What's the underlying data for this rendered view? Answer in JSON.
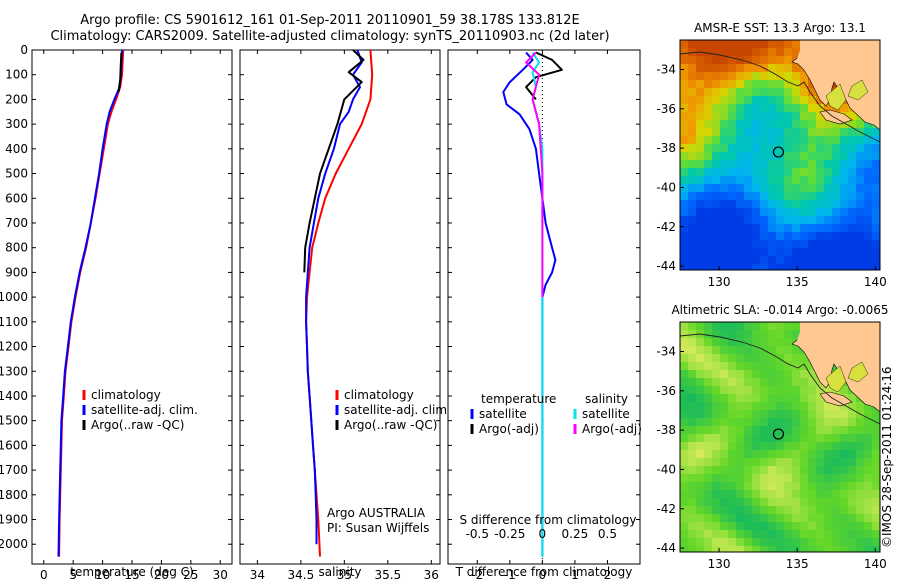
{
  "header": {
    "line1": "Argo profile: CS 5901612_161 01-Sep-2011 20110901_59 38.178S 133.812E",
    "line2": "Climatology: CARS2009. Satellite-adjusted climatology: synTS_20110903.nc (2d later)"
  },
  "colors": {
    "climatology": "#ff0000",
    "satellite": "#0000ff",
    "argo": "#000000",
    "salinity_satellite": "#00e5ee",
    "salinity_argo": "#ff00ff"
  },
  "chart_data": [
    {
      "type": "line",
      "xlabel": "temperature (deg C)",
      "ylabel": "",
      "xlim": [
        -2,
        32
      ],
      "ylim": [
        2080,
        0
      ],
      "xticks": [
        0,
        5,
        10,
        15,
        20,
        25,
        30
      ],
      "yticks": [
        0,
        100,
        200,
        300,
        400,
        500,
        600,
        700,
        800,
        900,
        1000,
        1100,
        1200,
        1300,
        1400,
        1500,
        1600,
        1700,
        1800,
        1900,
        2000
      ],
      "legend": {
        "placement": "bottom-left",
        "entries": [
          "climatology",
          "satellite-adj. clim.",
          "Argo(..raw -QC)"
        ]
      },
      "series": [
        {
          "name": "climatology",
          "color": "#ff0000",
          "points": [
            [
              13.5,
              0
            ],
            [
              13.4,
              50
            ],
            [
              13.3,
              100
            ],
            [
              13.0,
              150
            ],
            [
              12.3,
              200
            ],
            [
              11.5,
              250
            ],
            [
              10.9,
              300
            ],
            [
              10.2,
              400
            ],
            [
              9.5,
              500
            ],
            [
              8.8,
              600
            ],
            [
              8.0,
              700
            ],
            [
              7.2,
              800
            ],
            [
              6.2,
              900
            ],
            [
              5.4,
              1000
            ],
            [
              4.7,
              1100
            ],
            [
              4.2,
              1200
            ],
            [
              3.7,
              1300
            ],
            [
              3.4,
              1400
            ],
            [
              3.1,
              1500
            ],
            [
              2.9,
              1700
            ],
            [
              2.7,
              1900
            ],
            [
              2.6,
              2050
            ]
          ]
        },
        {
          "name": "satellite-adj. clim.",
          "color": "#0000ff",
          "points": [
            [
              13.3,
              0
            ],
            [
              13.2,
              50
            ],
            [
              13.1,
              100
            ],
            [
              12.9,
              150
            ],
            [
              12.0,
              200
            ],
            [
              11.2,
              250
            ],
            [
              10.7,
              300
            ],
            [
              10.0,
              400
            ],
            [
              9.4,
              500
            ],
            [
              8.7,
              600
            ],
            [
              8.0,
              700
            ],
            [
              7.1,
              800
            ],
            [
              6.1,
              900
            ],
            [
              5.3,
              1000
            ],
            [
              4.6,
              1100
            ],
            [
              4.1,
              1200
            ],
            [
              3.6,
              1300
            ],
            [
              3.3,
              1400
            ],
            [
              3.0,
              1500
            ],
            [
              2.8,
              1700
            ],
            [
              2.6,
              1900
            ],
            [
              2.5,
              2050
            ]
          ]
        },
        {
          "name": "Argo(..raw -QC)",
          "color": "#000000",
          "points": [
            [
              13.2,
              10
            ],
            [
              13.1,
              60
            ],
            [
              13.0,
              120
            ],
            [
              12.7,
              170
            ]
          ]
        }
      ]
    },
    {
      "type": "line",
      "xlabel": "salinity",
      "ylabel": "",
      "xlim": [
        33.8,
        36.1
      ],
      "ylim": [
        2080,
        0
      ],
      "xticks": [
        34,
        34.5,
        35,
        35.5,
        36
      ],
      "legend": {
        "placement": "bottom-right",
        "entries": [
          "climatology",
          "satellite-adj. clim.",
          "Argo(..raw -QC)"
        ]
      },
      "annotations": [
        "Argo AUSTRALIA",
        "PI: Susan Wijffels"
      ],
      "series": [
        {
          "name": "climatology",
          "color": "#ff0000",
          "points": [
            [
              35.3,
              0
            ],
            [
              35.32,
              100
            ],
            [
              35.3,
              200
            ],
            [
              35.2,
              300
            ],
            [
              35.05,
              400
            ],
            [
              34.9,
              500
            ],
            [
              34.78,
              600
            ],
            [
              34.7,
              700
            ],
            [
              34.63,
              800
            ],
            [
              34.6,
              900
            ],
            [
              34.57,
              1000
            ],
            [
              34.56,
              1100
            ],
            [
              34.57,
              1200
            ],
            [
              34.58,
              1300
            ],
            [
              34.6,
              1400
            ],
            [
              34.62,
              1500
            ],
            [
              34.64,
              1600
            ],
            [
              34.66,
              1700
            ],
            [
              34.68,
              1800
            ],
            [
              34.7,
              1900
            ],
            [
              34.72,
              2050
            ]
          ]
        },
        {
          "name": "satellite-adj. clim.",
          "color": "#0000ff",
          "points": [
            [
              35.15,
              0
            ],
            [
              35.2,
              50
            ],
            [
              35.1,
              100
            ],
            [
              35.18,
              150
            ],
            [
              35.1,
              200
            ],
            [
              35.05,
              250
            ],
            [
              34.95,
              300
            ],
            [
              34.88,
              400
            ],
            [
              34.78,
              500
            ],
            [
              34.7,
              600
            ],
            [
              34.65,
              700
            ],
            [
              34.6,
              800
            ],
            [
              34.58,
              900
            ],
            [
              34.56,
              1000
            ],
            [
              34.56,
              1100
            ],
            [
              34.57,
              1200
            ],
            [
              34.58,
              1300
            ],
            [
              34.6,
              1400
            ],
            [
              34.62,
              1500
            ],
            [
              34.64,
              1600
            ],
            [
              34.66,
              1700
            ],
            [
              34.67,
              1800
            ],
            [
              34.68,
              1900
            ],
            [
              34.68,
              2000
            ]
          ]
        },
        {
          "name": "Argo(..raw -QC)",
          "color": "#000000",
          "points": [
            [
              35.1,
              0
            ],
            [
              35.22,
              40
            ],
            [
              35.05,
              90
            ],
            [
              35.2,
              130
            ],
            [
              35.0,
              200
            ],
            [
              34.92,
              300
            ],
            [
              34.82,
              400
            ],
            [
              34.72,
              500
            ],
            [
              34.66,
              600
            ],
            [
              34.6,
              700
            ],
            [
              34.55,
              800
            ],
            [
              34.54,
              900
            ]
          ]
        }
      ]
    },
    {
      "type": "line",
      "xlabel": "T difference from climatology",
      "ylabel": "",
      "xlim": [
        -2.9,
        3.0
      ],
      "ylim": [
        2080,
        0
      ],
      "xticks": [
        -2,
        -1,
        0,
        1,
        2
      ],
      "secondary_axis": {
        "label": "S difference from climatology",
        "ticks": [
          -0.5,
          -0.25,
          0,
          0.25,
          0.5
        ],
        "tick_labels": [
          "-0.5",
          "-0.25",
          "0",
          "0.25",
          "0.5"
        ],
        "scale": 4
      },
      "legend": {
        "placement": "middle",
        "entries": [
          "temperature",
          "satellite",
          "Argo(-adj)",
          "salinity",
          "satellite",
          "Argo(-adj)"
        ]
      },
      "series": [
        {
          "name": "satellite",
          "color": "#0000ff",
          "points": [
            [
              -0.5,
              10
            ],
            [
              -0.3,
              40
            ],
            [
              -0.6,
              80
            ],
            [
              -1.0,
              130
            ],
            [
              -1.2,
              170
            ],
            [
              -1.1,
              220
            ],
            [
              -0.7,
              260
            ],
            [
              -0.4,
              320
            ],
            [
              -0.2,
              400
            ],
            [
              -0.1,
              500
            ],
            [
              0,
              600
            ],
            [
              0.1,
              700
            ],
            [
              0.3,
              800
            ],
            [
              0.4,
              850
            ],
            [
              0.3,
              900
            ],
            [
              0.1,
              950
            ],
            [
              0,
              1000
            ],
            [
              0,
              1200
            ],
            [
              0,
              1400
            ],
            [
              0,
              2050
            ]
          ]
        },
        {
          "name": "Argo(-adj)",
          "color": "#000000",
          "points": [
            [
              -0.2,
              10
            ],
            [
              0.3,
              40
            ],
            [
              0.6,
              80
            ],
            [
              -0.2,
              110
            ],
            [
              -0.5,
              150
            ],
            [
              -0.2,
              200
            ]
          ]
        },
        {
          "name": "satellite",
          "color": "#00e5ee",
          "points": [
            [
              -0.3,
              10
            ],
            [
              -0.1,
              50
            ],
            [
              -0.3,
              90
            ],
            [
              -0.2,
              150
            ],
            [
              -0.3,
              200
            ],
            [
              -0.1,
              300
            ],
            [
              0,
              400
            ],
            [
              0,
              600
            ],
            [
              0,
              800
            ],
            [
              0,
              1000
            ],
            [
              0,
              1500
            ],
            [
              0,
              2050
            ]
          ]
        },
        {
          "name": "Argo(-adj)",
          "color": "#ff00ff",
          "points": [
            [
              -0.2,
              10
            ],
            [
              -0.5,
              50
            ],
            [
              -0.1,
              100
            ],
            [
              -0.3,
              200
            ],
            [
              -0.1,
              300
            ],
            [
              0,
              500
            ],
            [
              0,
              1000
            ]
          ]
        }
      ]
    },
    {
      "type": "heatmap",
      "title": "AMSR-E SST: 13.3 Argo: 13.1",
      "xticks": [
        130,
        135,
        140
      ],
      "yticks": [
        -34,
        -36,
        -38,
        -40,
        -42,
        -44
      ],
      "xlim": [
        127.5,
        140.3
      ],
      "ylim": [
        -44.2,
        -32.5
      ],
      "marker": [
        133.8,
        -38.2
      ]
    },
    {
      "type": "heatmap",
      "title": "Altimetric SLA: -0.014 Argo: -0.0065",
      "xticks": [
        130,
        135,
        140
      ],
      "yticks": [
        -34,
        -36,
        -38,
        -40,
        -42,
        -44
      ],
      "xlim": [
        127.5,
        140.3
      ],
      "ylim": [
        -44.2,
        -32.5
      ],
      "marker": [
        133.8,
        -38.2
      ]
    }
  ],
  "footer": {
    "copyright": "©IMOS 28-Sep-2011 01:24:16"
  }
}
